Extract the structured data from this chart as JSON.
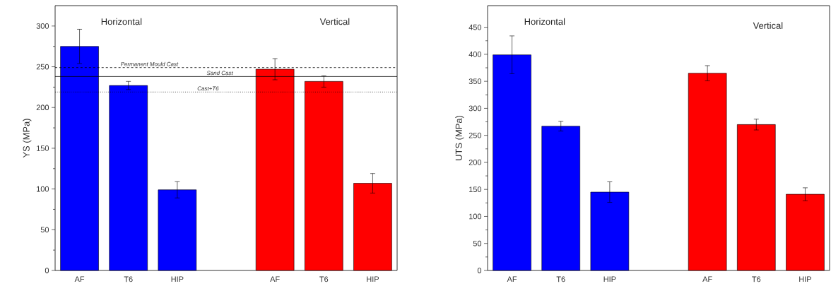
{
  "chart_data": [
    {
      "type": "bar",
      "ylabel": "YS (MPa)",
      "categories": [
        "AF",
        "T6",
        "HIP",
        null,
        "AF",
        "T6",
        "HIP"
      ],
      "values": [
        275,
        227,
        99,
        null,
        247,
        232,
        107
      ],
      "errors": [
        21,
        5,
        10,
        null,
        13,
        7,
        12
      ],
      "colors": [
        "#0000ff",
        "#0000ff",
        "#0000ff",
        null,
        "#ff0000",
        "#ff0000",
        "#ff0000"
      ],
      "ylim": [
        0,
        325
      ],
      "yticks": [
        0,
        50,
        100,
        150,
        200,
        250,
        300
      ],
      "ref_lines": [
        {
          "axis": "y",
          "value": 249,
          "label": "Permanent Mould Cast",
          "line_style": "dashed",
          "color": "#000000"
        },
        {
          "axis": "y",
          "value": 238,
          "label": "Sand Cast",
          "line_style": "solid",
          "color": "#000000"
        },
        {
          "axis": "y",
          "value": 219,
          "label": "Cast+T6",
          "line_style": "dotted",
          "color": "#000000"
        }
      ],
      "annotations": [
        "Horizontal",
        "Vertical"
      ]
    },
    {
      "type": "bar",
      "ylabel": "UTS (MPa)",
      "categories": [
        "AF",
        "T6",
        "HIP",
        null,
        "AF",
        "T6",
        "HIP"
      ],
      "values": [
        399,
        267,
        145,
        null,
        365,
        270,
        141
      ],
      "errors": [
        35,
        9,
        19,
        null,
        14,
        10,
        12
      ],
      "colors": [
        "#0000ff",
        "#0000ff",
        "#0000ff",
        null,
        "#ff0000",
        "#ff0000",
        "#ff0000"
      ],
      "ylim": [
        0,
        490
      ],
      "yticks": [
        0,
        50,
        100,
        150,
        200,
        250,
        300,
        350,
        400,
        450
      ],
      "annotations": [
        "Horizontal",
        "Vertical"
      ]
    }
  ]
}
